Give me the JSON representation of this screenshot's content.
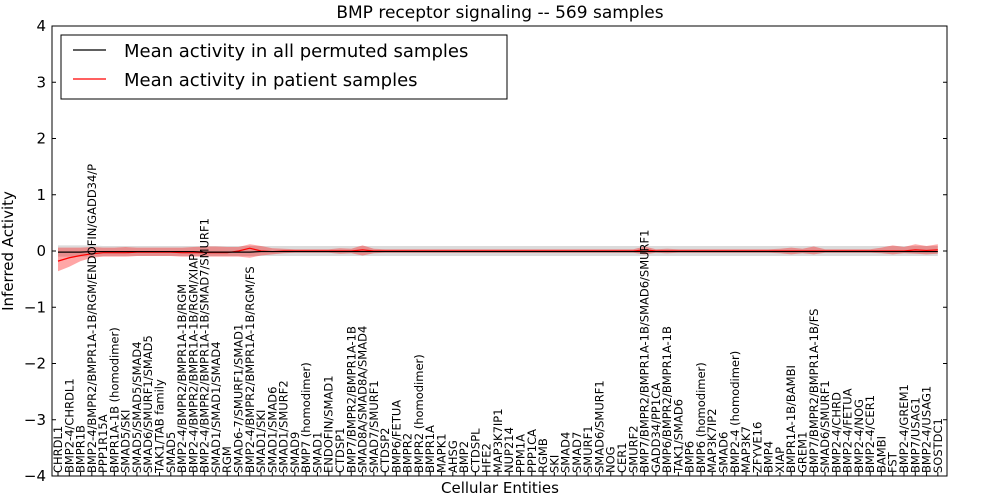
{
  "chart_data": {
    "type": "line",
    "title": "BMP receptor signaling -- 569 samples",
    "xlabel": "Cellular Entities",
    "ylabel": "Inferred Activity",
    "ylim": [
      -4,
      4
    ],
    "yticks": [
      4,
      3,
      2,
      1,
      0,
      -1,
      -2,
      -3,
      -4
    ],
    "ytick_labels": [
      "4",
      "3",
      "2",
      "1",
      "0",
      "−1",
      "−2",
      "−3",
      "−4"
    ],
    "legend_position": "top-left",
    "categories": [
      "CHRDL1",
      "BMP2-4/CHRDL1",
      "BMPR1B",
      "BMP2-4/BMPR2/BMPR1A-1B/RGM/ENDOFIN/GADD34/P",
      "PPP1R15A",
      "BMPR1A-1B (homodimer)",
      "SMAD5/SKI",
      "SMAD5/SMAD5/SMAD4",
      "SMAD6/SMURF1/SMAD5",
      "TAK1/TAB family",
      "SMAD5",
      "BMP2-4/BMPR2/BMPR1A-1B/RGM",
      "BMP2-4/BMPR2/BMPR1A-1B/RGM/XIAP",
      "BMP2-4/BMPR2/BMPR1A-1B/SMAD7/SMURF1",
      "SMAD1/SMAD1/SMAD4",
      "RGM",
      "SMAD6-7/SMURF1/SMAD1",
      "BMP2-4/BMPR2/BMPR1A-1B/RGM/FS",
      "SMAD1/SKI",
      "SMAD1/SMAD6",
      "SMAD1/SMURF2",
      "SMAD9",
      "BMP7 (homodimer)",
      "SMAD1",
      "ENDOFIN/SMAD1",
      "CTDSP1",
      "BMP7/BMPR2/BMPR1A-1B",
      "SMAD8A/SMAD8A/SMAD4",
      "SMAD7/SMURF1",
      "CTDSP2",
      "BMP6/FETUA",
      "BMPR2",
      "BMPR2 (homodimer)",
      "BMPR1A",
      "MAPK1",
      "AHSG",
      "BMP2",
      "CTDSPL",
      "HFE2",
      "MAP3K7IP1",
      "NUP214",
      "PPM1A",
      "PPP1CA",
      "RGMB",
      "SKI",
      "SMAD4",
      "SMAD7",
      "SMURF1",
      "SMAD6/SMURF1",
      "NOG",
      "CER1",
      "SMURF2",
      "BMP7/BMPR2/BMPR1A-1B/SMAD6/SMURF1",
      "GADD34/PP1CA",
      "BMP6/BMPR2/BMPR1A-1B",
      "TAK1/SMAD6",
      "BMP6",
      "BMP6 (homodimer)",
      "MAP3K7IP2",
      "SMAD6",
      "BMP2-4 (homodimer)",
      "MAP3K7",
      "ZFYVE16",
      "BMP4",
      "XIAP",
      "BMPR1A-1B/BAMBI",
      "GREM1",
      "BMP7/BMPR2/BMPR1A-1B/FS",
      "SMAD6/SMURF1",
      "BMP2-4/CHRD",
      "BMP2-4/FETUA",
      "BMP2-4/NOG",
      "BMP2-4/CER1",
      "BAMBI",
      "FST",
      "BMP2-4/GREM1",
      "BMP7/USAG1",
      "BMP2-4/USAG1",
      "SOSTDC1"
    ],
    "series": [
      {
        "name": "Mean activity in all permuted samples",
        "color": "#000000",
        "values": [
          -0.02,
          -0.02,
          -0.02,
          -0.01,
          -0.01,
          -0.01,
          -0.01,
          -0.01,
          -0.01,
          -0.01,
          -0.01,
          -0.01,
          -0.01,
          -0.02,
          -0.02,
          -0.02,
          -0.02,
          -0.02,
          -0.01,
          -0.01,
          -0.01,
          -0.01,
          -0.01,
          -0.01,
          -0.01,
          -0.01,
          -0.01,
          -0.01,
          -0.01,
          -0.01,
          -0.01,
          -0.01,
          -0.01,
          -0.01,
          -0.01,
          -0.01,
          -0.01,
          -0.01,
          -0.01,
          -0.01,
          -0.01,
          -0.01,
          -0.01,
          -0.01,
          -0.01,
          -0.01,
          -0.01,
          -0.01,
          -0.01,
          -0.01,
          -0.01,
          -0.01,
          -0.01,
          -0.01,
          -0.01,
          -0.01,
          -0.01,
          -0.01,
          -0.01,
          -0.01,
          -0.01,
          -0.01,
          -0.01,
          -0.01,
          -0.01,
          -0.01,
          -0.01,
          -0.01,
          -0.01,
          -0.01,
          -0.01,
          -0.01,
          -0.01,
          -0.01,
          -0.01,
          -0.01,
          -0.01,
          -0.01,
          -0.01
        ],
        "band_lower": [
          -0.1,
          -0.1,
          -0.1,
          -0.1,
          -0.09,
          -0.09,
          -0.09,
          -0.09,
          -0.09,
          -0.09,
          -0.09,
          -0.09,
          -0.09,
          -0.09,
          -0.09,
          -0.09,
          -0.09,
          -0.09,
          -0.09,
          -0.09,
          -0.09,
          -0.09,
          -0.09,
          -0.09,
          -0.09,
          -0.09,
          -0.09,
          -0.09,
          -0.09,
          -0.09,
          -0.09,
          -0.09,
          -0.09,
          -0.09,
          -0.09,
          -0.09,
          -0.09,
          -0.09,
          -0.09,
          -0.09,
          -0.09,
          -0.09,
          -0.09,
          -0.09,
          -0.09,
          -0.09,
          -0.09,
          -0.09,
          -0.09,
          -0.09,
          -0.09,
          -0.09,
          -0.09,
          -0.09,
          -0.09,
          -0.09,
          -0.09,
          -0.09,
          -0.09,
          -0.09,
          -0.09,
          -0.09,
          -0.09,
          -0.09,
          -0.09,
          -0.09,
          -0.09,
          -0.09,
          -0.09,
          -0.09,
          -0.09,
          -0.09,
          -0.09,
          -0.09,
          -0.09,
          -0.09,
          -0.09,
          -0.09,
          -0.09
        ],
        "band_upper": [
          0.1,
          0.1,
          0.1,
          0.1,
          0.09,
          0.09,
          0.09,
          0.09,
          0.09,
          0.09,
          0.09,
          0.09,
          0.09,
          0.09,
          0.09,
          0.09,
          0.09,
          0.09,
          0.09,
          0.09,
          0.09,
          0.09,
          0.09,
          0.09,
          0.09,
          0.09,
          0.09,
          0.09,
          0.09,
          0.09,
          0.09,
          0.09,
          0.09,
          0.09,
          0.09,
          0.09,
          0.09,
          0.09,
          0.09,
          0.09,
          0.09,
          0.09,
          0.09,
          0.09,
          0.09,
          0.09,
          0.09,
          0.09,
          0.09,
          0.09,
          0.09,
          0.09,
          0.09,
          0.09,
          0.09,
          0.09,
          0.09,
          0.09,
          0.09,
          0.09,
          0.09,
          0.09,
          0.09,
          0.09,
          0.09,
          0.09,
          0.09,
          0.09,
          0.09,
          0.09,
          0.09,
          0.09,
          0.09,
          0.09,
          0.09,
          0.09,
          0.09,
          0.09,
          0.09
        ]
      },
      {
        "name": "Mean activity in patient samples",
        "color": "#ff0000",
        "values": [
          -0.18,
          -0.12,
          -0.08,
          -0.05,
          -0.03,
          -0.03,
          -0.03,
          -0.02,
          -0.02,
          -0.02,
          -0.02,
          -0.03,
          -0.03,
          -0.03,
          -0.03,
          -0.03,
          0,
          0.05,
          0,
          -0.01,
          0,
          0,
          0,
          0,
          0,
          0,
          0,
          0.02,
          0,
          0,
          0,
          0,
          0,
          0,
          0,
          0,
          0,
          0,
          0,
          0,
          0,
          0,
          0,
          0,
          0,
          0,
          0,
          0,
          0,
          0,
          0,
          0,
          0.02,
          0,
          0,
          0,
          0,
          0,
          0,
          0,
          0,
          0,
          0,
          0,
          0,
          0,
          0,
          0,
          0,
          0,
          0,
          0,
          0,
          0,
          0,
          0,
          0.02,
          0.01,
          0.02
        ],
        "band_lower": [
          -0.36,
          -0.28,
          -0.18,
          -0.12,
          -0.1,
          -0.1,
          -0.1,
          -0.09,
          -0.09,
          -0.09,
          -0.09,
          -0.1,
          -0.1,
          -0.1,
          -0.1,
          -0.1,
          -0.1,
          -0.12,
          -0.08,
          -0.06,
          -0.04,
          -0.03,
          -0.03,
          -0.03,
          -0.03,
          -0.05,
          -0.04,
          -0.08,
          -0.04,
          -0.03,
          -0.03,
          -0.03,
          -0.03,
          -0.03,
          -0.03,
          -0.03,
          -0.03,
          -0.03,
          -0.03,
          -0.03,
          -0.03,
          -0.03,
          -0.03,
          -0.03,
          -0.03,
          -0.03,
          -0.03,
          -0.03,
          -0.03,
          -0.03,
          -0.03,
          -0.03,
          -0.06,
          -0.03,
          -0.04,
          -0.03,
          -0.03,
          -0.03,
          -0.03,
          -0.03,
          -0.03,
          -0.03,
          -0.03,
          -0.03,
          -0.04,
          -0.06,
          -0.04,
          -0.06,
          -0.03,
          -0.03,
          -0.03,
          -0.03,
          -0.03,
          -0.04,
          -0.06,
          -0.04,
          -0.05,
          -0.06,
          -0.05
        ],
        "band_upper": [
          0.06,
          0.06,
          0.06,
          0.07,
          0.06,
          0.06,
          0.07,
          0.06,
          0.06,
          0.06,
          0.06,
          0.06,
          0.07,
          0.08,
          0.08,
          0.07,
          0.07,
          0.12,
          0.09,
          0.05,
          0.04,
          0.03,
          0.03,
          0.03,
          0.03,
          0.05,
          0.04,
          0.1,
          0.04,
          0.03,
          0.03,
          0.03,
          0.03,
          0.03,
          0.03,
          0.03,
          0.03,
          0.03,
          0.03,
          0.03,
          0.03,
          0.03,
          0.03,
          0.03,
          0.03,
          0.03,
          0.03,
          0.03,
          0.03,
          0.03,
          0.03,
          0.03,
          0.08,
          0.03,
          0.04,
          0.03,
          0.03,
          0.03,
          0.03,
          0.03,
          0.03,
          0.03,
          0.03,
          0.03,
          0.04,
          0.06,
          0.04,
          0.08,
          0.03,
          0.03,
          0.03,
          0.03,
          0.03,
          0.06,
          0.1,
          0.07,
          0.12,
          0.09,
          0.12
        ]
      }
    ]
  }
}
